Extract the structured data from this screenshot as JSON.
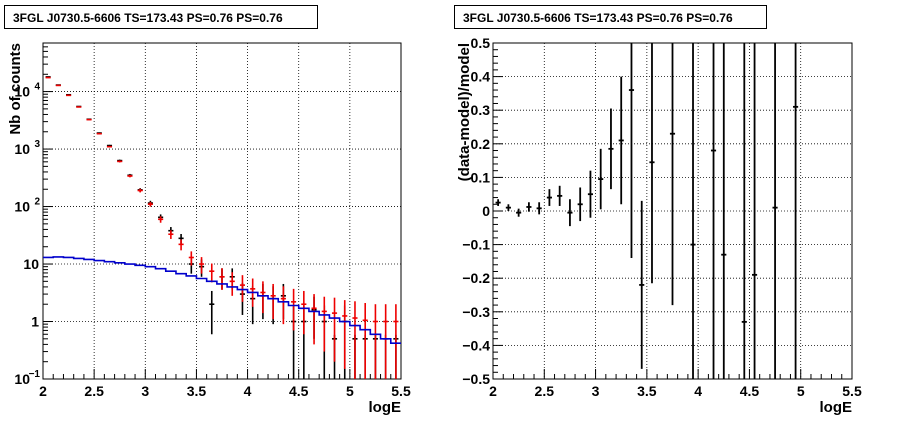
{
  "chart_data": [
    {
      "type": "scatter",
      "title": "3FGL J0730.5-6606 TS=173.43 PS=0.76 PS=0.76",
      "xlabel": "logE",
      "ylabel": "Nb of counts",
      "yscale": "log",
      "xlim": [
        2,
        5.5
      ],
      "ylim": [
        0.1,
        70000
      ],
      "grid": true,
      "x_ticks": [
        "2",
        "2.5",
        "3",
        "3.5",
        "4",
        "4.5",
        "5",
        "5.5"
      ],
      "y_ticks": [
        {
          "v": 0.1,
          "b": "10",
          "e": "−1"
        },
        {
          "v": 1,
          "b": "1",
          "e": ""
        },
        {
          "v": 10,
          "b": "10",
          "e": ""
        },
        {
          "v": 100,
          "b": "10",
          "e": "2"
        },
        {
          "v": 1000,
          "b": "10",
          "e": "3"
        },
        {
          "v": 10000,
          "b": "10",
          "e": "4"
        }
      ],
      "series": [
        {
          "kind": "data",
          "color": "#000000",
          "x": [
            2.05,
            2.15,
            2.25,
            2.35,
            2.45,
            2.55,
            2.65,
            2.75,
            2.85,
            2.95,
            3.05,
            3.15,
            3.25,
            3.35,
            3.45,
            3.55,
            3.65,
            3.75,
            3.85,
            3.95,
            4.05,
            4.15,
            4.25,
            4.35,
            4.45,
            4.55,
            4.65,
            4.75,
            4.85,
            4.95,
            5.05,
            5.15,
            5.25,
            5.35,
            5.45
          ],
          "y": [
            18000,
            13000,
            8800,
            5500,
            3300,
            1900,
            1150,
            630,
            350,
            195,
            115,
            65,
            38,
            28,
            10,
            9,
            2,
            6,
            6,
            3,
            2.5,
            2.8,
            2.5,
            2.8,
            1,
            1,
            1.6,
            1,
            0.5,
            1,
            0.5,
            0.5,
            0.5,
            0.5,
            0.5
          ],
          "yerr": [
            130,
            110,
            90,
            75,
            55,
            45,
            34,
            25,
            19,
            14,
            11,
            8,
            6,
            5.3,
            3.2,
            3,
            1.4,
            2.4,
            2.4,
            1.7,
            1.6,
            1.7,
            1.6,
            1.7,
            0.9,
            0.9,
            1.1,
            0.9,
            0,
            0.9,
            0,
            0,
            0,
            0,
            0
          ]
        },
        {
          "kind": "model_points",
          "color": "#ee0000",
          "x": [
            2.05,
            2.15,
            2.25,
            2.35,
            2.45,
            2.55,
            2.65,
            2.75,
            2.85,
            2.95,
            3.05,
            3.15,
            3.25,
            3.35,
            3.45,
            3.55,
            3.65,
            3.75,
            3.85,
            3.95,
            4.05,
            4.15,
            4.25,
            4.35,
            4.45,
            4.55,
            4.65,
            4.75,
            4.85,
            4.95,
            5.05,
            5.15,
            5.25,
            5.35,
            5.45
          ],
          "y": [
            17500,
            12800,
            8600,
            5400,
            3250,
            1850,
            1100,
            610,
            340,
            190,
            110,
            60,
            33,
            22,
            13,
            10,
            7.5,
            6,
            5,
            4.3,
            3.7,
            3.2,
            2.8,
            2.5,
            2.2,
            2,
            1.7,
            1.5,
            1.4,
            1.25,
            1.15,
            1.05,
            1,
            1,
            1
          ],
          "yerr": [
            132,
            113,
            93,
            73,
            57,
            43,
            33,
            25,
            18,
            14,
            10.5,
            7.7,
            5.7,
            4.7,
            3.6,
            3.2,
            2.7,
            2.45,
            2.2,
            2.1,
            1.9,
            1.8,
            1.7,
            1.6,
            1.5,
            1.4,
            1.3,
            1.2,
            1.2,
            1.1,
            1.1,
            1.05,
            1,
            1,
            1
          ]
        },
        {
          "kind": "source_model",
          "color": "#0000cc",
          "x": [
            2.05,
            2.15,
            2.25,
            2.35,
            2.45,
            2.55,
            2.65,
            2.75,
            2.85,
            2.95,
            3.05,
            3.15,
            3.25,
            3.35,
            3.45,
            3.55,
            3.65,
            3.75,
            3.85,
            3.95,
            4.05,
            4.15,
            4.25,
            4.35,
            4.45,
            4.55,
            4.65,
            4.75,
            4.85,
            4.95,
            5.05,
            5.15,
            5.25,
            5.35,
            5.45
          ],
          "y": [
            13,
            13.3,
            13,
            12.5,
            12,
            11.5,
            11,
            10.5,
            10,
            9.5,
            9,
            8.3,
            7.5,
            6.8,
            6.2,
            5.6,
            5,
            4.5,
            4,
            3.6,
            3.2,
            2.8,
            2.5,
            2.2,
            1.9,
            1.7,
            1.5,
            1.3,
            1.15,
            1,
            0.85,
            0.72,
            0.6,
            0.5,
            0.42
          ]
        }
      ]
    },
    {
      "type": "scatter",
      "title": "3FGL J0730.5-6606 TS=173.43 PS=0.76 PS=0.76",
      "xlabel": "logE",
      "ylabel": "(data-model)/model",
      "xlim": [
        2,
        5.5
      ],
      "ylim": [
        -0.5,
        0.5
      ],
      "grid": true,
      "x_ticks": [
        "2",
        "2.5",
        "3",
        "3.5",
        "4",
        "4.5",
        "5",
        "5.5"
      ],
      "y_ticks": [
        "−0.5",
        "−0.4",
        "−0.3",
        "−0.2",
        "−0.1",
        "0",
        "0.1",
        "0.2",
        "0.3",
        "0.4",
        "0.5"
      ],
      "series": [
        {
          "kind": "residuals",
          "color": "#000000",
          "x": [
            2.05,
            2.15,
            2.25,
            2.35,
            2.45,
            2.55,
            2.65,
            2.75,
            2.85,
            2.95,
            3.05,
            3.15,
            3.25,
            3.35,
            3.45,
            3.55,
            3.75,
            3.95,
            4.15,
            4.25,
            4.45,
            4.55,
            4.75,
            4.95
          ],
          "y": [
            0.025,
            0.01,
            -0.005,
            0.012,
            0.008,
            0.04,
            0.045,
            -0.005,
            0.02,
            0.05,
            0.095,
            0.185,
            0.21,
            0.36,
            -0.22,
            0.145,
            0.23,
            -0.1,
            0.18,
            -0.13,
            -0.33,
            -0.19,
            0.01,
            0.31
          ],
          "yerr": [
            0.01,
            0.01,
            0.012,
            0.014,
            0.018,
            0.025,
            0.03,
            0.04,
            0.05,
            0.07,
            0.09,
            0.12,
            0.19,
            0.5,
            0.25,
            0.36,
            0.51,
            1.0,
            1.0,
            1.0,
            1.0,
            1.0,
            1.0,
            1.0
          ]
        }
      ]
    }
  ]
}
